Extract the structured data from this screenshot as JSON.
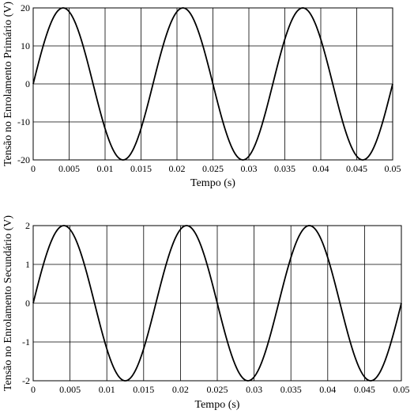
{
  "chart_data": [
    {
      "type": "line",
      "title": "",
      "xlabel": "Tempo (s)",
      "ylabel": "Tensão no Enrolamento Primário (V)",
      "xlim": [
        0,
        0.05
      ],
      "ylim": [
        -20,
        20
      ],
      "xticks": [
        "0",
        "0.005",
        "0.01",
        "0.015",
        "0.02",
        "0.025",
        "0.03",
        "0.035",
        "0.04",
        "0.045",
        "0.05"
      ],
      "yticks": [
        "20",
        "10",
        "0",
        "-10",
        "-20"
      ],
      "grid": true,
      "series": [
        {
          "amplitude": 20,
          "frequency_hz": 60,
          "x": [
            0,
            0.0025,
            0.005,
            0.0075,
            0.01,
            0.0125,
            0.015,
            0.0175,
            0.02,
            0.0225,
            0.025,
            0.0275,
            0.03,
            0.0325,
            0.035,
            0.0375,
            0.04,
            0.0425,
            0.045,
            0.0475,
            0.05
          ],
          "y": [
            0,
            15.9,
            19.0,
            8.1,
            -11.8,
            -20.0,
            -11.8,
            8.1,
            19.0,
            15.9,
            0,
            -15.9,
            -19.0,
            -8.1,
            11.8,
            20.0,
            11.8,
            -8.1,
            -19.0,
            -15.9,
            0
          ]
        }
      ]
    },
    {
      "type": "line",
      "title": "",
      "xlabel": "Tempo (s)",
      "ylabel": "Tensão no Enrolamento Secundário (V)",
      "xlim": [
        0,
        0.05
      ],
      "ylim": [
        -2,
        2
      ],
      "xticks": [
        "0",
        "0.005",
        "0.01",
        "0.015",
        "0.02",
        "0.025",
        "0.03",
        "0.035",
        "0.04",
        "0.045",
        "0.05"
      ],
      "yticks": [
        "2",
        "1",
        "0",
        "-1",
        "-2"
      ],
      "grid": true,
      "series": [
        {
          "amplitude": 2,
          "frequency_hz": 60,
          "x": [
            0,
            0.0025,
            0.005,
            0.0075,
            0.01,
            0.0125,
            0.015,
            0.0175,
            0.02,
            0.0225,
            0.025,
            0.0275,
            0.03,
            0.0325,
            0.035,
            0.0375,
            0.04,
            0.0425,
            0.045,
            0.0475,
            0.05
          ],
          "y": [
            0,
            1.59,
            1.9,
            0.81,
            -1.18,
            -2.0,
            -1.18,
            0.81,
            1.9,
            1.59,
            0,
            -1.59,
            -1.9,
            -0.81,
            1.18,
            2.0,
            1.18,
            -0.81,
            -1.9,
            -1.59,
            0
          ]
        }
      ]
    }
  ]
}
